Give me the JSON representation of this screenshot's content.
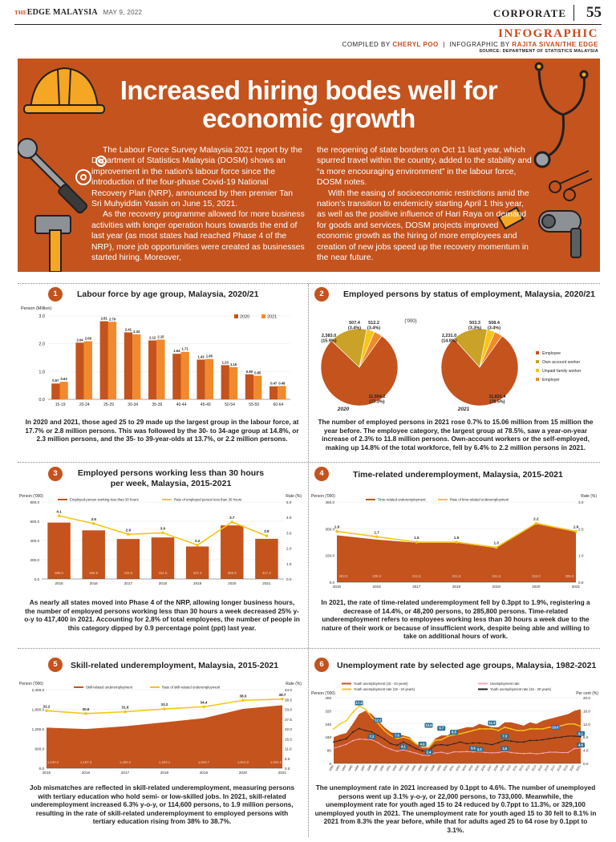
{
  "header": {
    "brand_the": "THE",
    "brand": "EDGE MALAYSIA",
    "date": "MAY 9, 2022",
    "section": "CORPORATE",
    "page_number": "55",
    "label": "INFOGRAPHIC",
    "compiled_by_prefix": "COMPILED BY",
    "compiled_by": "CHERYL POO",
    "infographic_by_prefix": "INFOGRAPHIC BY",
    "infographic_by": "RAJITA SIVAN/THE EDGE",
    "source": "SOURCE: DEPARTMENT OF STATISTICS MALAYSIA"
  },
  "banner": {
    "title": "Increased hiring bodes well for economic growth",
    "left_p1": "The Labour Force Survey Malaysia 2021 report by the Department of Statistics Malaysia (DOSM) shows an improvement in the nation's labour force since the introduction of the four-phase Covid-19 National Recovery Plan (NRP), announced by then premier Tan Sri Muhyiddin Yassin on June 15, 2021.",
    "left_p2": "As the recovery programme allowed for more business activities with longer operation hours towards the end of last year (as most states had reached Phase 4 of the NRP), more job opportunities were created as businesses started hiring. Moreover,",
    "right_p1": "the reopening of state borders on Oct 11 last year, which spurred travel within the country, added to the stability and “a more encouraging environment” in the labour force, DOSM notes.",
    "right_p2": "With the easing of socioeconomic restrictions amid the nation's transition to endemicity starting April 1 this year, as well as the positive influence of Hari Raya on demand for goods and services, DOSM projects improved economic growth as the hiring of more employees and creation of new jobs speed up the recovery momentum in the near future."
  },
  "panels": [
    {
      "number": "1",
      "title": "Labour force by age group, Malaysia, 2020/21",
      "caption": "In 2020 and 2021, those aged 25 to 29 made up the largest group in the labour force, at 17.7% or 2.8 million persons. This was followed by the 30- to 34-age group at 14.8%, or 2.3 million persons, and the 35- to 39-year-olds at 13.7%, or 2.2 million persons."
    },
    {
      "number": "2",
      "title": "Employed persons by status of employment, Malaysia, 2020/21",
      "caption": "The number of employed persons in 2021 rose 0.7% to 15.06 million from 15 million the year before. The employee category, the largest group at 78.5%, saw a year-on-year increase of 2.3% to 11.8 million persons. Own-account workers or the self-employed, making up 14.8% of the total workforce, fell by 6.4% to 2.2 million persons in 2021."
    },
    {
      "number": "3",
      "title": "Employed persons working less than 30 hours per week, Malaysia, 2015-2021",
      "caption": "As nearly all states moved into Phase 4 of the NRP, allowing longer business hours, the number of employed persons working less than 30 hours a week decreased 25% y-o-y to 417,400 in 2021. Accounting for 2.8% of total employees, the number of people in this category dipped by 0.9 percentage point (ppt) last year."
    },
    {
      "number": "4",
      "title": "Time-related underemployment, Malaysia, 2015-2021",
      "caption": "In 2021, the rate of time-related underemployment fell by 0.3ppt to 1.9%, registering a decrease of 14.4%, or 48,200 persons, to 285,800 persons. Time-related underemployment refers to employees working less than 30 hours a week due to the nature of their work or because of insufficient work, despite being able and willing to take on additional hours of work."
    },
    {
      "number": "5",
      "title": "Skill-related underemployment, Malaysia, 2015-2021",
      "caption": "Job mismatches are reflected in skill-related underemployment, measuring persons with tertiary education who hold semi- or low-skilled jobs. In 2021, skill-related underemployment increased 6.3% y-o-y, or 114,600 persons, to 1.9 million persons, resulting in the rate of skill-related underemployment to employed persons with tertiary education rising from 38% to 38.7%."
    },
    {
      "number": "6",
      "title": "Unemployment rate by selected age groups, Malaysia, 1982-2021",
      "caption": "The unemployment rate in 2021 increased by 0.1ppt to 4.6%. The number of unemployed persons went up 3.1% y-o-y, or 22,000 persons, to 733,000. Meanwhile, the unemployment rate for youth aged 15 to 24 reduced by 0.7ppt to 11.3%, or 329,100 unemployed youth in 2021. The unemployment rate for youth aged 15 to 30 fell to 8.1% in 2021 from 8.3% the year before, while that for adults aged 25 to 64 rose by 0.1ppt to 3.1%."
    }
  ],
  "chart_data": [
    {
      "type": "bar",
      "title": "Labour force by age group, Malaysia, 2020/21",
      "ylabel": "Person (Million)",
      "ylim": [
        0,
        3.0
      ],
      "yticks": [
        "0.0",
        "1.0",
        "2.0",
        "3.0"
      ],
      "categories": [
        "15-19",
        "20-24",
        "25-29",
        "30-34",
        "35-39",
        "40-44",
        "45-49",
        "50-54",
        "55-59",
        "60-64"
      ],
      "series": [
        {
          "name": "2020",
          "values": [
            0.57,
            2.04,
            2.81,
            2.41,
            2.12,
            1.64,
            1.43,
            1.23,
            0.9,
            0.47
          ],
          "labels": [
            "0.57",
            "2.04",
            "2.81",
            "2.41",
            "2.12",
            "1.64",
            "1.43",
            "1.23",
            "0.90",
            "0.47"
          ]
        },
        {
          "name": "2021",
          "values": [
            0.63,
            2.09,
            2.79,
            2.34,
            2.15,
            1.71,
            1.45,
            1.16,
            0.85,
            0.48
          ],
          "labels": [
            "0.63",
            "2.09",
            "2.79",
            "2.34",
            "2.15",
            "1.71",
            "1.45",
            "1.16",
            "0.85",
            "0.48"
          ]
        }
      ],
      "legend": "top-right"
    },
    {
      "type": "pie",
      "title": "Employed persons by status of employment, Malaysia, 2020/21",
      "unit": "('000)",
      "categories": [
        "Employee",
        "Own account worker",
        "Unpaid family worker",
        "Employer"
      ],
      "colors": [
        "#c4531e",
        "#c9a227",
        "#f5c518",
        "#f08a2c"
      ],
      "pies": [
        {
          "name": "2020",
          "values": [
            11564.2,
            2383.0,
            507.4,
            512.2
          ],
          "labels": [
            "11,564.2\n(77.3%)",
            "2,383.0\n(15.9%)",
            "507.4\n(3.4%)",
            "512.2\n(3.4%)"
          ]
        },
        {
          "name": "2021",
          "values": [
            11821.4,
            2231.0,
            503.3,
            508.4
          ],
          "labels": [
            "11,821.4\n(78.5%)",
            "2,231.0\n(14.8%)",
            "503.3\n(3.3%)",
            "508.4\n(3.4%)"
          ]
        }
      ],
      "legend": "right"
    },
    {
      "type": "bar",
      "title": "Employed persons working less than 30 hours per week, Malaysia, 2015-2021",
      "ylabel": "Person ('000)",
      "y2label": "Rate (%)",
      "ylim": [
        0,
        800
      ],
      "y2lim": [
        0,
        5.0
      ],
      "yticks": [
        "0.0",
        "200.0",
        "400.0",
        "600.0",
        "800.0"
      ],
      "y2ticks": [
        "0.0",
        "1.0",
        "2.0",
        "3.0",
        "4.0",
        "5.0"
      ],
      "categories": [
        "2015",
        "2016",
        "2017",
        "2018",
        "2019",
        "2020",
        "2021"
      ],
      "series": [
        {
          "name": "Employed person working less than 30 hours",
          "values": [
            586.0,
            505.5,
            415.5,
            431.5,
            337.4,
            556.8,
            417.4
          ],
          "labels": [
            "586.0",
            "505.5",
            "415.5",
            "431.5",
            "337.4",
            "556.8",
            "417.4"
          ]
        },
        {
          "name": "Rate of employed person less than 30 hours",
          "axis": "right",
          "values": [
            4.1,
            3.6,
            2.9,
            3.0,
            2.2,
            3.7,
            2.8
          ],
          "labels": [
            "4.1",
            "3.6",
            "2.9",
            "3.0",
            "2.2",
            "3.7",
            "2.8"
          ]
        }
      ],
      "legend": "top"
    },
    {
      "type": "area",
      "title": "Time-related underemployment, Malaysia, 2015-2021",
      "ylabel": "Person ('000)",
      "y2label": "Rate (%)",
      "ylim": [
        0,
        450
      ],
      "y2lim": [
        0,
        3.0
      ],
      "yticks": [
        "0.0",
        "150.0",
        "300.0",
        "450.0"
      ],
      "y2ticks": [
        "0.0",
        "1.0",
        "2.0",
        "3.0"
      ],
      "categories": [
        "2015",
        "2016",
        "2017",
        "2018",
        "2019",
        "2020",
        "2021"
      ],
      "series": [
        {
          "name": "Time-related underemployment",
          "values": [
            263.0,
            239.3,
            221.5,
            221.5,
            191.6,
            334.0,
            285.8
          ],
          "labels": [
            "263.0",
            "239.3",
            "221.5",
            "221.5",
            "191.6",
            "334.0",
            "285.8"
          ]
        },
        {
          "name": "Rate of time-related underemployment",
          "axis": "right",
          "values": [
            1.9,
            1.7,
            1.5,
            1.5,
            1.3,
            2.2,
            1.9
          ],
          "labels": [
            "1.9",
            "1.7",
            "1.5",
            "1.5",
            "1.3",
            "2.2",
            "1.9"
          ]
        }
      ],
      "legend": "top"
    },
    {
      "type": "area",
      "title": "Skill-related underemployment, Malaysia, 2015-2021",
      "ylabel": "Person ('000)",
      "y2label": "Rate (%)",
      "ylim": [
        0,
        2400
      ],
      "y2lim": [
        0,
        44.0
      ],
      "yticks": [
        "0.0",
        "600.0",
        "1,200.0",
        "1,800.0",
        "2,400.0"
      ],
      "y2ticks": [
        "0.0",
        "5.5",
        "11.0",
        "16.5",
        "22.0",
        "27.5",
        "33.0",
        "38.5",
        "44.0"
      ],
      "categories": [
        "2015",
        "2016",
        "2017",
        "2018",
        "2019",
        "2020",
        "2021"
      ],
      "series": [
        {
          "name": "Skill-related underemployment",
          "values": [
            1240.2,
            1197.3,
            1282.2,
            1403.1,
            1526.7,
            1812.0,
            1926.2
          ],
          "labels": [
            "1,240.2",
            "1,197.3",
            "1,282.2",
            "1,403.1",
            "1,526.7",
            "1,812.0",
            "1,926.2"
          ]
        },
        {
          "name": "Rate of skill-related underemployment",
          "axis": "right",
          "values": [
            32.2,
            30.6,
            31.6,
            33.2,
            34.4,
            38.0,
            38.7
          ],
          "labels": [
            "32.2",
            "30.6",
            "31.6",
            "33.2",
            "34.4",
            "38.0",
            "38.7"
          ]
        }
      ],
      "legend": "top"
    },
    {
      "type": "area",
      "title": "Unemployment rate by selected age groups, Malaysia, 1982-2021",
      "ylabel": "Person ('000)",
      "y2label": "Per cent (%)",
      "ylim": [
        0,
        400
      ],
      "y2lim": [
        0,
        20.0
      ],
      "yticks": [
        "0",
        "80",
        "160",
        "240",
        "320",
        "400"
      ],
      "y2ticks": [
        "0.0",
        "4.0",
        "8.0",
        "12.0",
        "16.0",
        "20.0"
      ],
      "categories": [
        "1982",
        "1983",
        "1984",
        "1985",
        "1986",
        "1987",
        "1988",
        "1989",
        "1990",
        "1991",
        "1992",
        "1993",
        "1994",
        "1995",
        "1996",
        "1997",
        "1998",
        "1999",
        "2000",
        "2001",
        "2002",
        "2003",
        "2004",
        "2005",
        "2006",
        "2007",
        "2008",
        "2009",
        "2010",
        "2011",
        "2012",
        "2013",
        "2014",
        "2015",
        "2016",
        "2017",
        "2018",
        "2019",
        "2020",
        "2021"
      ],
      "series": [
        {
          "name": "Youth unemployment (15 - 24 years)",
          "values": [
            160,
            175,
            185,
            240,
            300,
            320,
            300,
            260,
            220,
            190,
            180,
            170,
            160,
            120,
            100,
            100,
            150,
            170,
            170,
            200,
            210,
            220,
            220,
            240,
            230,
            220,
            220,
            250,
            250,
            240,
            230,
            250,
            240,
            260,
            270,
            280,
            290,
            300,
            320,
            329
          ]
        },
        {
          "name": "Unemployment rate",
          "axis": "right",
          "values": [
            4.6,
            5.2,
            5.8,
            6.9,
            7.4,
            7.3,
            7.2,
            6.3,
            5.1,
            4.3,
            3.7,
            4.1,
            3.6,
            3.1,
            2.5,
            2.4,
            3.2,
            3.4,
            3.0,
            3.5,
            3.5,
            3.6,
            3.5,
            3.5,
            3.3,
            3.2,
            3.3,
            3.7,
            3.3,
            3.1,
            3.0,
            3.1,
            2.9,
            3.1,
            3.4,
            3.4,
            3.3,
            3.3,
            4.5,
            4.6
          ],
          "labels": [
            "",
            "",
            "",
            "",
            "",
            "",
            "7.2",
            "",
            "",
            "",
            "",
            "",
            "",
            "",
            "",
            "",
            "",
            "",
            "",
            "",
            "",
            "",
            "",
            "",
            "",
            "",
            "",
            "",
            "",
            "",
            "",
            "",
            "",
            "",
            "",
            "",
            "",
            "",
            "",
            "4.6"
          ]
        },
        {
          "name": "Youth unemployment rate (15 - 24 years)",
          "axis": "right",
          "values": [
            10.5,
            12.0,
            13.0,
            15.5,
            17.4,
            16.5,
            14.0,
            12.2,
            10.0,
            8.5,
            7.6,
            8.0,
            7.5,
            6.0,
            4.9,
            4.9,
            7.0,
            7.2,
            8.2,
            8.7,
            9.0,
            9.5,
            10.0,
            10.5,
            10.5,
            10.5,
            10.0,
            11.0,
            10.5,
            10.0,
            10.0,
            10.5,
            10.5,
            10.5,
            11.0,
            11.0,
            11.5,
            12.0,
            12.0,
            11.3
          ],
          "labels": [
            "",
            "",
            "",
            "",
            "17.4",
            "",
            "",
            "12.2",
            "",
            "",
            "",
            "",
            "",
            "",
            "4.9",
            "",
            "",
            "",
            "",
            "",
            "",
            "",
            "",
            "",
            "",
            "",
            "",
            "",
            "",
            "",
            "",
            "",
            "",
            "",
            "",
            "",
            "",
            "",
            "",
            "11.3"
          ]
        },
        {
          "name": "Youth unemployment rate (15 - 30 years)",
          "axis": "right",
          "values": [
            6.5,
            7.0,
            7.5,
            9.5,
            10.6,
            10.0,
            9.6,
            8.5,
            7.4,
            6.0,
            5.5,
            6.5,
            5.5,
            4.5,
            3.8,
            3.9,
            5.5,
            5.7,
            5.5,
            6.0,
            6.5,
            6.0,
            6.2,
            6.2,
            6.0,
            5.7,
            6.3,
            7.0,
            6.8,
            6.5,
            6.5,
            7.0,
            7.0,
            7.2,
            7.5,
            7.8,
            8.0,
            8.3,
            8.3,
            8.1
          ],
          "labels": [
            "",
            "",
            "",
            "",
            "",
            "",
            "",
            "",
            "",
            "",
            "",
            "",
            "",
            "",
            "",
            "",
            "",
            "",
            "",
            "",
            "",
            "",
            "",
            "",
            "",
            "",
            "",
            "",
            "",
            "",
            "",
            "",
            "",
            "",
            "",
            "",
            "",
            "",
            "",
            "8.1"
          ]
        }
      ],
      "point_labels": [
        "17.4",
        "12.2",
        "7.2",
        "10.6",
        "7.6",
        "4.1",
        "4.9",
        "2.4",
        "9.7",
        "8.5",
        "3.6",
        "3.3",
        "11.3",
        "7.3",
        "3.5",
        "10.0",
        "8.1",
        "4.6"
      ],
      "legend": "top"
    }
  ]
}
